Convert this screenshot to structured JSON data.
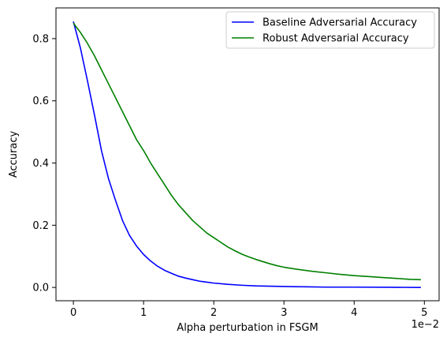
{
  "chart_data": {
    "type": "line",
    "title": "",
    "xlabel": "Alpha perturbation in FSGM",
    "ylabel": "Accuracy",
    "x_offset_label": "1e−2",
    "xlim": [
      -0.00248,
      0.0521
    ],
    "ylim": [
      -0.0428,
      0.8988
    ],
    "xticks": [
      0,
      0.01,
      0.02,
      0.03,
      0.04,
      0.05
    ],
    "xtick_labels": [
      "0",
      "1",
      "2",
      "3",
      "4",
      "5"
    ],
    "yticks": [
      0,
      0.2,
      0.4,
      0.6,
      0.8
    ],
    "ytick_labels": [
      "0.0",
      "0.2",
      "0.4",
      "0.6",
      "0.8"
    ],
    "grid": false,
    "legend_position": "top-right",
    "series": [
      {
        "name": "Baseline Adversarial Accuracy",
        "color": "#0000ff",
        "x": [
          0,
          0.001,
          0.002,
          0.003,
          0.004,
          0.005,
          0.006,
          0.007,
          0.008,
          0.009,
          0.01,
          0.011,
          0.012,
          0.013,
          0.014,
          0.015,
          0.016,
          0.017,
          0.018,
          0.019,
          0.02,
          0.022,
          0.024,
          0.026,
          0.028,
          0.03,
          0.033,
          0.036,
          0.04,
          0.045,
          0.0495
        ],
        "y": [
          0.855,
          0.77,
          0.665,
          0.555,
          0.44,
          0.35,
          0.28,
          0.215,
          0.167,
          0.133,
          0.106,
          0.085,
          0.068,
          0.055,
          0.045,
          0.036,
          0.03,
          0.025,
          0.02,
          0.017,
          0.014,
          0.01,
          0.007,
          0.005,
          0.004,
          0.003,
          0.002,
          0.001,
          0.001,
          0.0005,
          0.0
        ]
      },
      {
        "name": "Robust Adversarial Accuracy",
        "color": "#008000",
        "x": [
          0,
          0.001,
          0.002,
          0.003,
          0.004,
          0.005,
          0.006,
          0.007,
          0.008,
          0.009,
          0.01,
          0.011,
          0.012,
          0.013,
          0.014,
          0.015,
          0.016,
          0.017,
          0.018,
          0.019,
          0.02,
          0.021,
          0.022,
          0.023,
          0.024,
          0.025,
          0.026,
          0.027,
          0.028,
          0.029,
          0.03,
          0.032,
          0.034,
          0.036,
          0.038,
          0.04,
          0.042,
          0.044,
          0.046,
          0.048,
          0.0495
        ],
        "y": [
          0.85,
          0.82,
          0.785,
          0.745,
          0.7,
          0.655,
          0.61,
          0.565,
          0.52,
          0.475,
          0.44,
          0.4,
          0.365,
          0.33,
          0.295,
          0.265,
          0.24,
          0.215,
          0.195,
          0.175,
          0.16,
          0.145,
          0.13,
          0.118,
          0.107,
          0.098,
          0.09,
          0.083,
          0.076,
          0.07,
          0.065,
          0.058,
          0.052,
          0.047,
          0.042,
          0.038,
          0.035,
          0.032,
          0.029,
          0.026,
          0.025
        ]
      }
    ]
  }
}
